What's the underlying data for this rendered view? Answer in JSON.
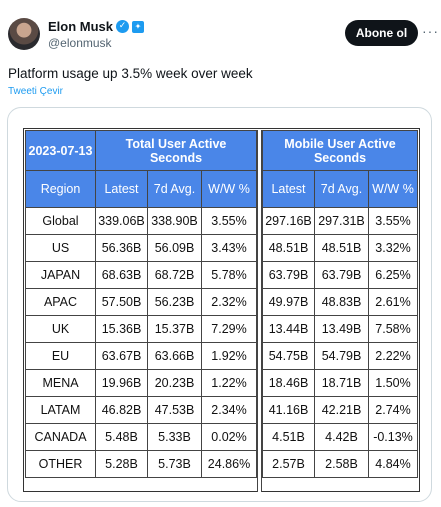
{
  "author": {
    "name": "Elon Musk",
    "handle": "@elonmusk"
  },
  "follow_label": "Abone ol",
  "more_label": "···",
  "tweet": {
    "text": "Platform usage up 3.5% week over week",
    "translate_label": "Tweeti Çevir"
  },
  "table": {
    "date": "2023-07-13",
    "group_total": "Total User Active Seconds",
    "group_mobile": "Mobile User Active Seconds",
    "col_region": "Region",
    "col_latest": "Latest",
    "col_7d": "7d Avg.",
    "col_ww": "W/W %",
    "rows": [
      {
        "region": "Global",
        "t_latest": "339.06B",
        "t_7d": "338.90B",
        "t_ww": "3.55%",
        "m_latest": "297.16B",
        "m_7d": "297.31B",
        "m_ww": "3.55%"
      },
      {
        "region": "US",
        "t_latest": "56.36B",
        "t_7d": "56.09B",
        "t_ww": "3.43%",
        "m_latest": "48.51B",
        "m_7d": "48.51B",
        "m_ww": "3.32%"
      },
      {
        "region": "JAPAN",
        "t_latest": "68.63B",
        "t_7d": "68.72B",
        "t_ww": "5.78%",
        "m_latest": "63.79B",
        "m_7d": "63.79B",
        "m_ww": "6.25%"
      },
      {
        "region": "APAC",
        "t_latest": "57.50B",
        "t_7d": "56.23B",
        "t_ww": "2.32%",
        "m_latest": "49.97B",
        "m_7d": "48.83B",
        "m_ww": "2.61%"
      },
      {
        "region": "UK",
        "t_latest": "15.36B",
        "t_7d": "15.37B",
        "t_ww": "7.29%",
        "m_latest": "13.44B",
        "m_7d": "13.49B",
        "m_ww": "7.58%"
      },
      {
        "region": "EU",
        "t_latest": "63.67B",
        "t_7d": "63.66B",
        "t_ww": "1.92%",
        "m_latest": "54.75B",
        "m_7d": "54.79B",
        "m_ww": "2.22%"
      },
      {
        "region": "MENA",
        "t_latest": "19.96B",
        "t_7d": "20.23B",
        "t_ww": "1.22%",
        "m_latest": "18.46B",
        "m_7d": "18.71B",
        "m_ww": "1.50%"
      },
      {
        "region": "LATAM",
        "t_latest": "46.82B",
        "t_7d": "47.53B",
        "t_ww": "2.34%",
        "m_latest": "41.16B",
        "m_7d": "42.21B",
        "m_ww": "2.74%"
      },
      {
        "region": "CANADA",
        "t_latest": "5.48B",
        "t_7d": "5.33B",
        "t_ww": "0.02%",
        "m_latest": "4.51B",
        "m_7d": "4.42B",
        "m_ww": "-0.13%"
      },
      {
        "region": "OTHER",
        "t_latest": "5.28B",
        "t_7d": "5.73B",
        "t_ww": "24.86%",
        "m_latest": "2.57B",
        "m_7d": "2.58B",
        "m_ww": "4.84%"
      }
    ]
  },
  "colors": {
    "header_blue": "#4a86e8",
    "accent": "#1d9bf0"
  },
  "icons": {
    "verified": "verified-check-icon",
    "affiliate": "twitter-bird-badge-icon",
    "more": "more-dots-icon"
  }
}
